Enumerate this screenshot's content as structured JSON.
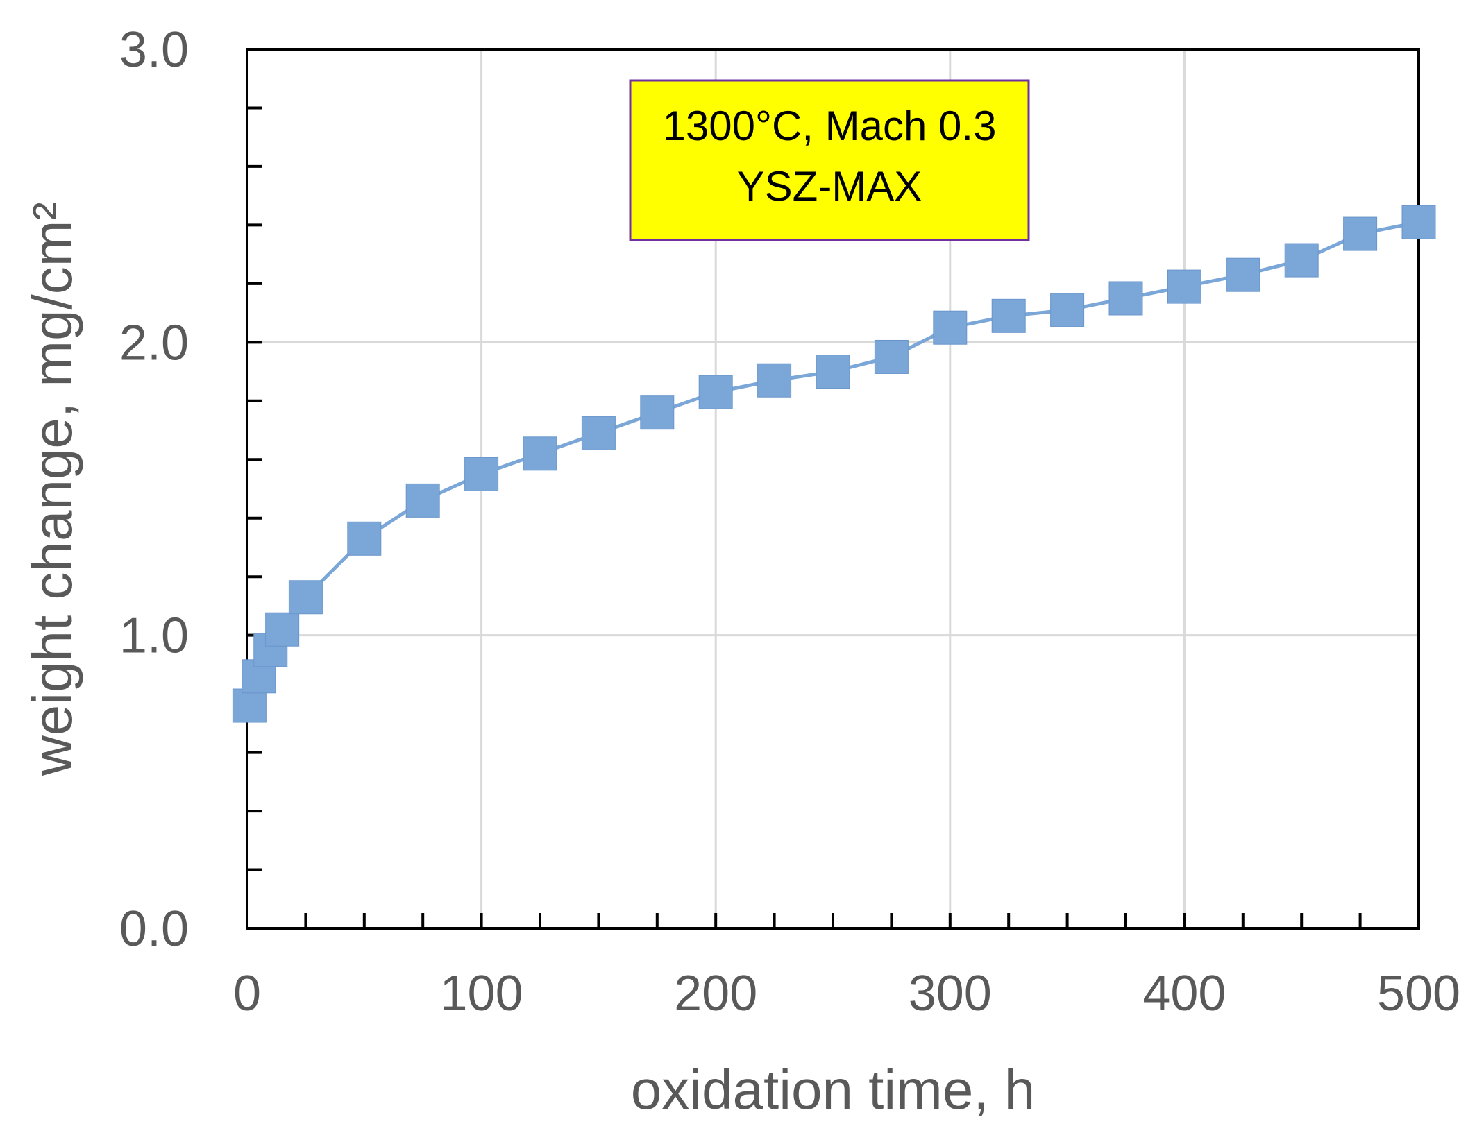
{
  "chart_data": {
    "type": "line",
    "title": "",
    "xlabel": "oxidation time, h",
    "ylabel": "weight change, mg/cm²",
    "xlim": [
      0,
      500
    ],
    "ylim": [
      0,
      3
    ],
    "x_ticks": [
      0,
      100,
      200,
      300,
      400,
      500
    ],
    "y_ticks": [
      0,
      1,
      2,
      3
    ],
    "x_tick_labels": [
      "0",
      "100",
      "200",
      "300",
      "400",
      "500"
    ],
    "y_tick_labels": [
      "0.0",
      "1.0",
      "2.0",
      "3.0"
    ],
    "x_minor_step": 25,
    "y_minor_step": 0.2,
    "grid": true,
    "annotation": {
      "lines": [
        "1300°C, Mach 0.3",
        "YSZ-MAX"
      ],
      "background": "#ffff00",
      "border": "#7030a0"
    },
    "series": [
      {
        "name": "YSZ-MAX",
        "color": "#7aa6d8",
        "marker": "square",
        "x": [
          1,
          5,
          10,
          15,
          25,
          50,
          75,
          100,
          125,
          150,
          175,
          200,
          225,
          250,
          275,
          300,
          325,
          350,
          375,
          400,
          425,
          450,
          475,
          500
        ],
        "y": [
          0.76,
          0.86,
          0.95,
          1.02,
          1.13,
          1.33,
          1.46,
          1.55,
          1.62,
          1.69,
          1.76,
          1.83,
          1.87,
          1.9,
          1.95,
          2.05,
          2.09,
          2.11,
          2.15,
          2.19,
          2.23,
          2.28,
          2.37,
          2.41
        ]
      }
    ]
  }
}
